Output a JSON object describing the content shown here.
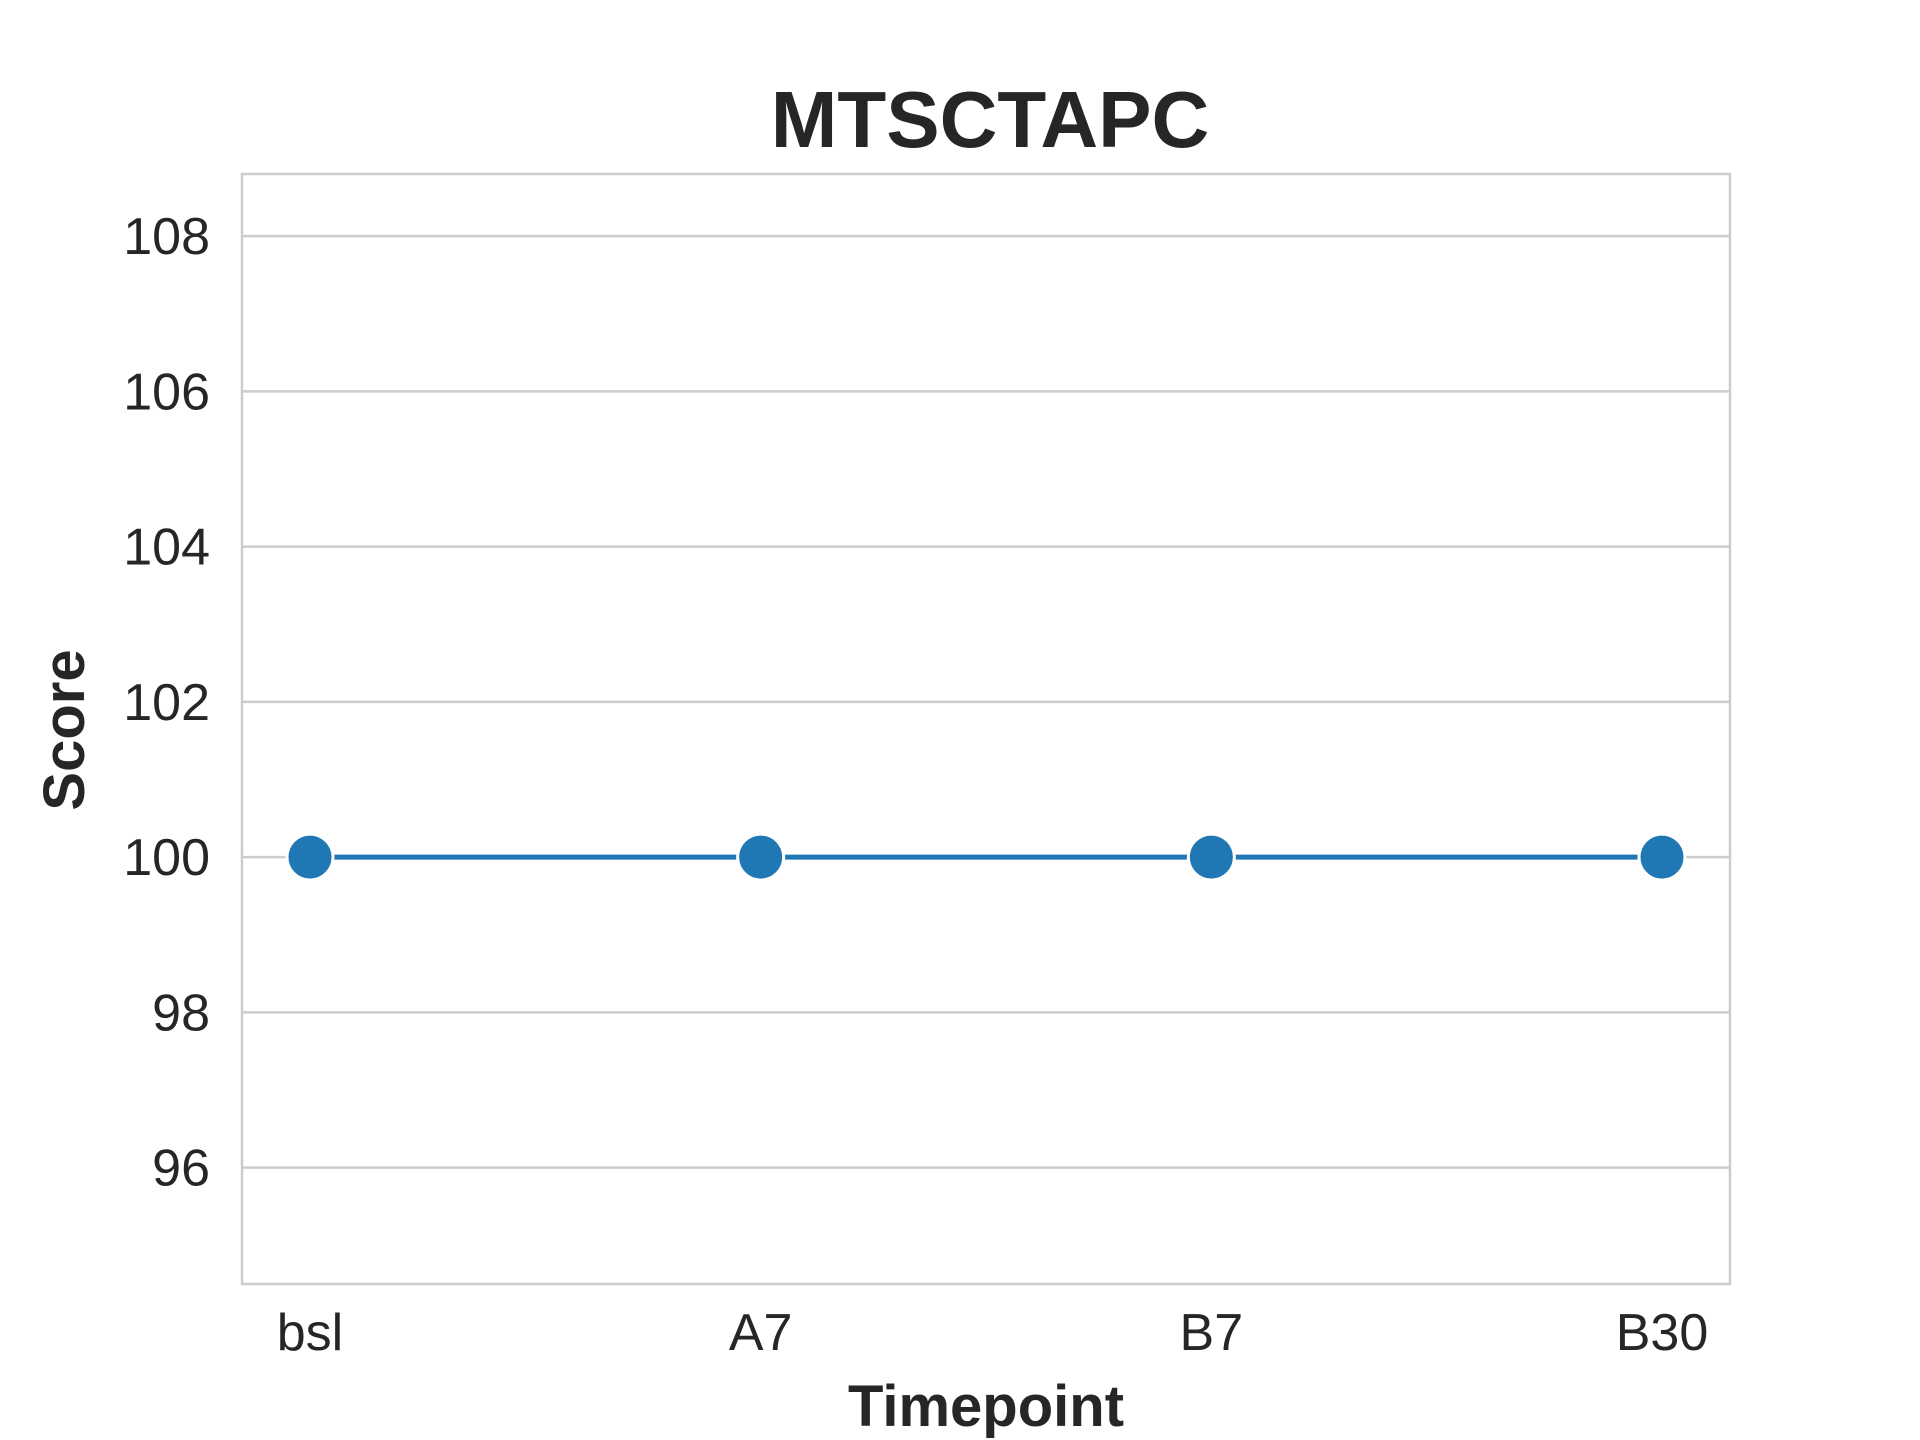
{
  "chart_data": {
    "type": "line",
    "title": "MTSCTAPC",
    "xlabel": "Timepoint",
    "ylabel": "Score",
    "categories": [
      "bsl",
      "A7",
      "B7",
      "B30"
    ],
    "series": [
      {
        "values": [
          100,
          100,
          100,
          100
        ]
      }
    ],
    "ylim": [
      94.5,
      108.8
    ],
    "yticks": [
      96,
      98,
      100,
      102,
      104,
      106,
      108
    ],
    "grid": "horizontal",
    "colors": {
      "series": "#1f77b4",
      "grid": "#cccccc",
      "text": "#262626"
    }
  }
}
